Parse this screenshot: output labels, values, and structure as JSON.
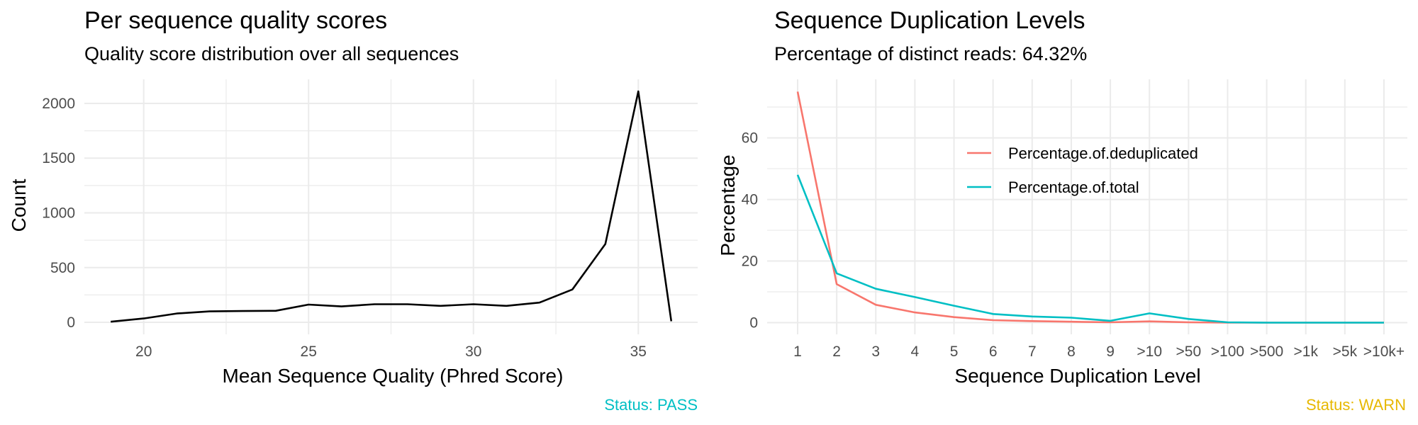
{
  "chart_data": [
    {
      "type": "line",
      "title": "Per sequence quality scores",
      "subtitle": "Quality score distribution over all sequences",
      "xlabel": "Mean Sequence Quality (Phred Score)",
      "ylabel": "Count",
      "xlim": [
        18.2,
        36.8
      ],
      "ylim": [
        -110,
        2220
      ],
      "x_ticks": [
        20,
        25,
        30,
        35
      ],
      "y_ticks": [
        0,
        500,
        1000,
        1500,
        2000
      ],
      "grid": true,
      "line_color": "#000000",
      "x": [
        19,
        20,
        21,
        22,
        23,
        24,
        25,
        26,
        27,
        28,
        29,
        30,
        31,
        32,
        33,
        34,
        35,
        36
      ],
      "y": [
        5,
        35,
        80,
        100,
        103,
        105,
        162,
        145,
        165,
        165,
        150,
        165,
        150,
        180,
        300,
        715,
        2110,
        10
      ],
      "status": "Status: PASS",
      "status_color": "#00BFC4"
    },
    {
      "type": "line",
      "title": "Sequence Duplication Levels",
      "subtitle": "Percentage of distinct reads: 64.32%",
      "xlabel": "Sequence Duplication Level",
      "ylabel": "Percentage",
      "categories": [
        "1",
        "2",
        "3",
        "4",
        "5",
        "6",
        "7",
        "8",
        "9",
        ">10",
        ">50",
        ">100",
        ">500",
        ">1k",
        ">5k",
        ">10k+"
      ],
      "ylim": [
        -3.8,
        79
      ],
      "y_ticks": [
        0,
        20,
        40,
        60
      ],
      "grid": true,
      "legend_position": "inside-top-center",
      "series": [
        {
          "name": "Percentage.of.deduplicated",
          "color": "#F8766D",
          "values": [
            75,
            12.5,
            5.8,
            3.3,
            1.8,
            0.8,
            0.5,
            0.3,
            0.1,
            0.4,
            0.1,
            0.0,
            0.0,
            0.0,
            0.0,
            0.0
          ]
        },
        {
          "name": "Percentage.of.total",
          "color": "#00BFC4",
          "values": [
            48,
            16,
            11,
            8.3,
            5.5,
            2.8,
            2.0,
            1.6,
            0.6,
            3.0,
            1.2,
            0.1,
            0.0,
            0.0,
            0.0,
            0.0
          ]
        }
      ],
      "status": "Status: WARN",
      "status_color": "#E7B800"
    }
  ]
}
